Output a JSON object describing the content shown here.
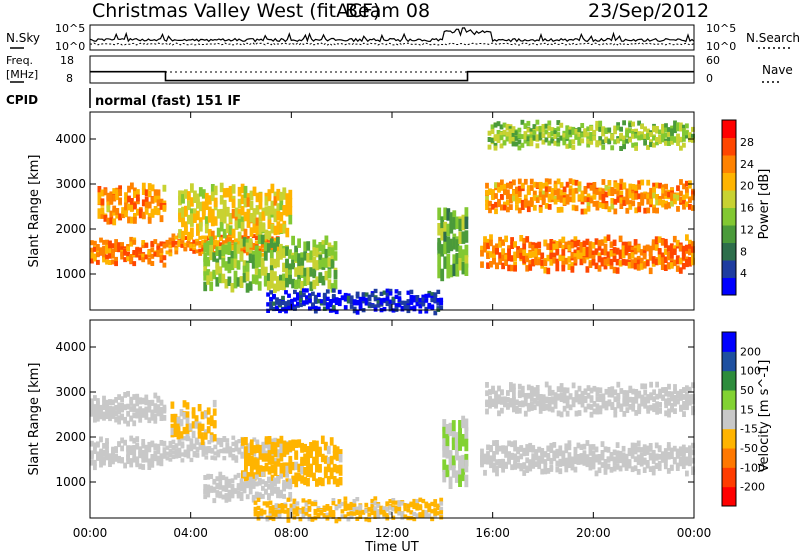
{
  "header": {
    "station": "Christmas Valley West (fitACF)",
    "beam": "Beam 08",
    "date": "23/Sep/2012"
  },
  "top_panels": {
    "nsky": {
      "label": "N.Sky",
      "ticks": [
        "10^5",
        "10^0"
      ]
    },
    "nsearch": {
      "label": "N.Search",
      "ticks": [
        "10^5",
        "10^0"
      ]
    },
    "freq": {
      "label_line1": "Freq.",
      "label_line2": "[MHz]",
      "ticks": [
        "18",
        "8"
      ]
    },
    "nave": {
      "label": "Nave",
      "ticks": [
        "60",
        "0"
      ]
    },
    "cpid": {
      "label": "CPID",
      "value": "normal (fast) 151 IF"
    }
  },
  "chart_data": [
    {
      "type": "heatmap",
      "name": "power",
      "ylabel": "Slant Range [km]",
      "xlabel": "",
      "yticks": [
        1000,
        2000,
        3000,
        4000
      ],
      "ylim": [
        200,
        4600
      ],
      "xlim": [
        0,
        24
      ],
      "colorbar": {
        "label": "Power [dB]",
        "ticks": [
          "4",
          "8",
          "12",
          "16",
          "20",
          "24",
          "28"
        ],
        "colors": [
          "#0000ff",
          "#1e3ca0",
          "#2d6e4b",
          "#4a9a3a",
          "#82c832",
          "#c8d232",
          "#ffb400",
          "#ff8200",
          "#ff4600",
          "#ff0000"
        ]
      },
      "regions": [
        {
          "feature": "lower band",
          "start_h": 0.0,
          "end_h": 3.0,
          "range_km": [
            1300,
            1700
          ],
          "db": 28
        },
        {
          "feature": "lower band",
          "start_h": 3.0,
          "end_h": 7.5,
          "range_km": [
            1550,
            1800
          ],
          "db": 27
        },
        {
          "feature": "upper band",
          "start_h": 0.3,
          "end_h": 3.0,
          "range_km": [
            2250,
            2900
          ],
          "db": 26
        },
        {
          "feature": "rising arc",
          "start_h": 3.5,
          "end_h": 8.0,
          "range_km": [
            1900,
            2900
          ],
          "db": 22
        },
        {
          "feature": "rising arc",
          "start_h": 4.5,
          "end_h": 9.8,
          "range_km": [
            750,
            1750
          ],
          "db": 18
        },
        {
          "feature": "near-range",
          "start_h": 7.0,
          "end_h": 14.0,
          "range_km": [
            250,
            550
          ],
          "db": 6
        },
        {
          "feature": "dusk arc",
          "start_h": 13.8,
          "end_h": 15.0,
          "range_km": [
            1000,
            2400
          ],
          "db": 16
        },
        {
          "feature": "lower band",
          "start_h": 15.5,
          "end_h": 24.0,
          "range_km": [
            1150,
            1750
          ],
          "db": 28
        },
        {
          "feature": "upper band",
          "start_h": 15.7,
          "end_h": 24.0,
          "range_km": [
            2500,
            3000
          ],
          "db": 26
        },
        {
          "feature": "sporadic",
          "start_h": 15.8,
          "end_h": 24.0,
          "range_km": [
            3900,
            4300
          ],
          "db": 18
        }
      ]
    },
    {
      "type": "heatmap",
      "name": "velocity",
      "ylabel": "Slant Range [km]",
      "xlabel": "Time UT",
      "xticks": [
        "00:00",
        "04:00",
        "08:00",
        "12:00",
        "16:00",
        "20:00",
        "00:00"
      ],
      "yticks": [
        1000,
        2000,
        3000,
        4000
      ],
      "ylim": [
        200,
        4600
      ],
      "xlim": [
        0,
        24
      ],
      "colorbar": {
        "label": "Velocity [m s^-1]",
        "ticks": [
          "200",
          "100",
          "50",
          "15",
          "-15",
          "-50",
          "-100",
          "-200"
        ],
        "colors": [
          "#0000ff",
          "#1e50a0",
          "#2d8c3c",
          "#82d232",
          "#c8c8c8",
          "#ffb400",
          "#ff7800",
          "#ff3c00",
          "#ff0000"
        ]
      },
      "regions": [
        {
          "feature": "ground scatter",
          "start_h": 0.0,
          "end_h": 3.0,
          "range_km": [
            1400,
            1900
          ],
          "velocity": 0
        },
        {
          "feature": "ground scatter",
          "start_h": 0.0,
          "end_h": 3.0,
          "range_km": [
            2400,
            2900
          ],
          "velocity": 0
        },
        {
          "feature": "ground scatter",
          "start_h": 3.0,
          "end_h": 8.0,
          "range_km": [
            1600,
            1900
          ],
          "velocity": 0
        },
        {
          "feature": "ionospheric",
          "start_h": 3.2,
          "end_h": 5.0,
          "range_km": [
            2000,
            2700
          ],
          "velocity": -40
        },
        {
          "feature": "ionospheric",
          "start_h": 6.0,
          "end_h": 10.0,
          "range_km": [
            1050,
            1900
          ],
          "velocity": -50
        },
        {
          "feature": "ground scatter",
          "start_h": 4.5,
          "end_h": 8.0,
          "range_km": [
            700,
            1100
          ],
          "velocity": 0
        },
        {
          "feature": "near-range",
          "start_h": 6.5,
          "end_h": 14.0,
          "range_km": [
            250,
            550
          ],
          "velocity": -40
        },
        {
          "feature": "dusk arc",
          "start_h": 14.0,
          "end_h": 15.0,
          "range_km": [
            1000,
            2400
          ],
          "velocity": 30
        },
        {
          "feature": "ground scatter",
          "start_h": 15.5,
          "end_h": 24.0,
          "range_km": [
            1300,
            1800
          ],
          "velocity": 0
        },
        {
          "feature": "ground scatter",
          "start_h": 15.7,
          "end_h": 24.0,
          "range_km": [
            2600,
            3100
          ],
          "velocity": 0
        }
      ]
    },
    {
      "type": "line",
      "name": "frequency",
      "series": [
        {
          "x": [
            0,
            3.0,
            3.0,
            15.0,
            15.0,
            24.0
          ],
          "y": [
            12.2,
            12.2,
            8.9,
            8.9,
            12.2,
            12.2
          ]
        }
      ],
      "ylim": [
        8,
        18
      ]
    }
  ]
}
